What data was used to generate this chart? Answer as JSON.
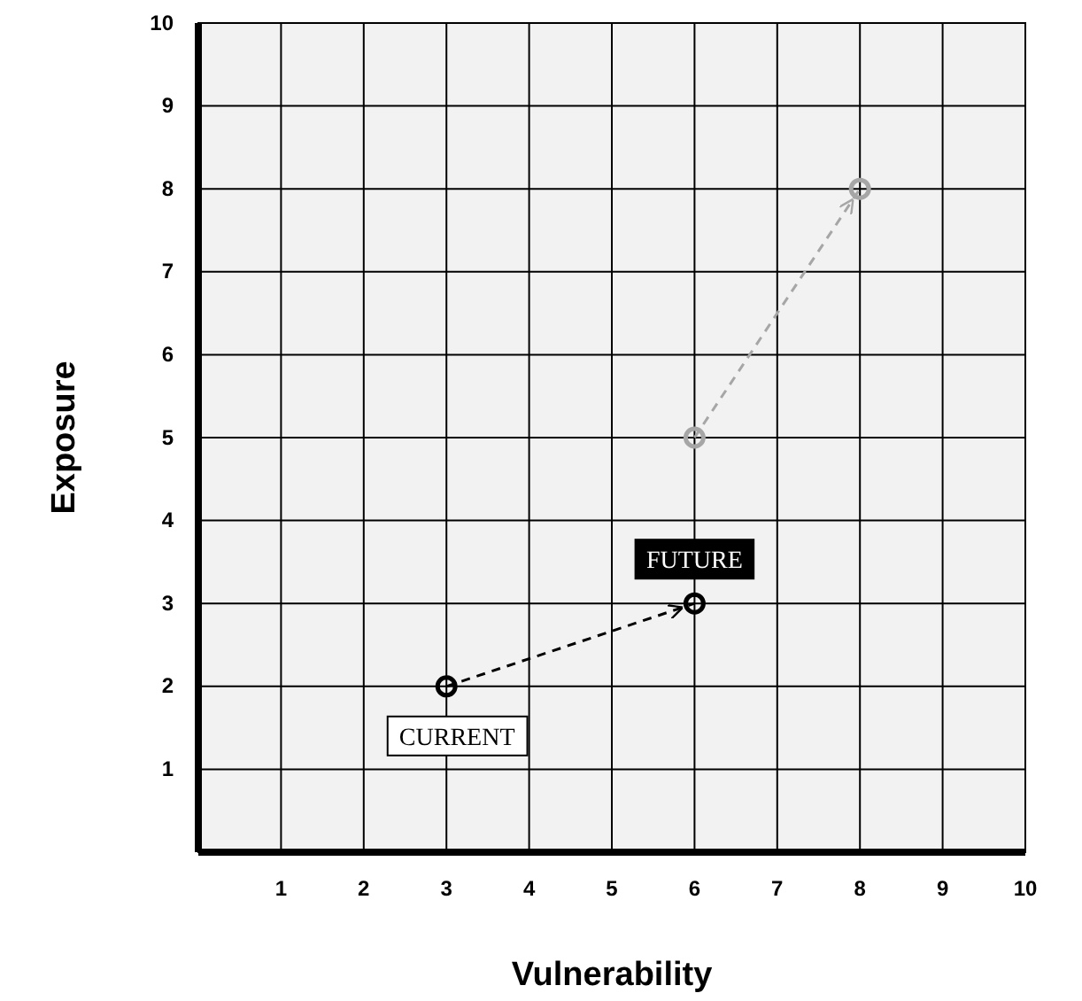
{
  "chart_data": {
    "type": "line",
    "xlabel": "Vulnerability",
    "ylabel": "Exposure",
    "xlim": [
      0,
      10
    ],
    "ylim": [
      0,
      10
    ],
    "xticks": [
      {
        "value": 0,
        "label": null
      },
      1,
      2,
      3,
      4,
      5,
      6,
      7,
      8,
      9,
      10
    ],
    "yticks": [
      {
        "value": 0,
        "label": null
      },
      1,
      2,
      3,
      4,
      5,
      6,
      7,
      8,
      9,
      10
    ],
    "grid": true,
    "marker": "circle",
    "line_style": "dashed",
    "series": [
      {
        "color": "#000000",
        "x": [
          3,
          6
        ],
        "values": [
          2,
          3
        ]
      },
      {
        "color": "#a6a6a6",
        "x": [
          6,
          8
        ],
        "values": [
          5,
          8
        ]
      }
    ],
    "annotations": [
      {
        "text": "CURRENT",
        "x": 3,
        "y": 2
      },
      {
        "text": "FUTURE",
        "x": 6,
        "y": 3
      }
    ]
  }
}
